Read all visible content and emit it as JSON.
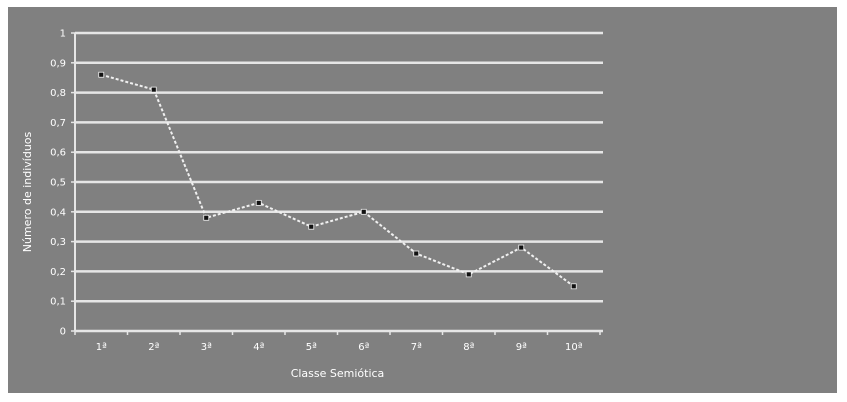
{
  "chart_data": {
    "type": "line",
    "xlabel": "Classe Semiótica",
    "ylabel": "Número de indivíduos",
    "categories": [
      "1ª",
      "2ª",
      "3ª",
      "4ª",
      "5ª",
      "6ª",
      "7ª",
      "8ª",
      "9ª",
      "10ª"
    ],
    "yticks": [
      "0",
      "0,1",
      "0,2",
      "0,3",
      "0,4",
      "0,5",
      "0,6",
      "0,7",
      "0,8",
      "0,9",
      "1"
    ],
    "ylim": [
      0,
      1
    ],
    "grid": true,
    "legend": "none",
    "series": [
      {
        "values": [
          0.86,
          0.81,
          0.38,
          0.43,
          0.35,
          0.4,
          0.26,
          0.19,
          0.28,
          0.15
        ]
      }
    ],
    "colors": {
      "background": "#808080",
      "grid": "#e6e6e6",
      "line": "#f0f0f0",
      "marker": "#111111",
      "text": "#ffffff"
    }
  }
}
